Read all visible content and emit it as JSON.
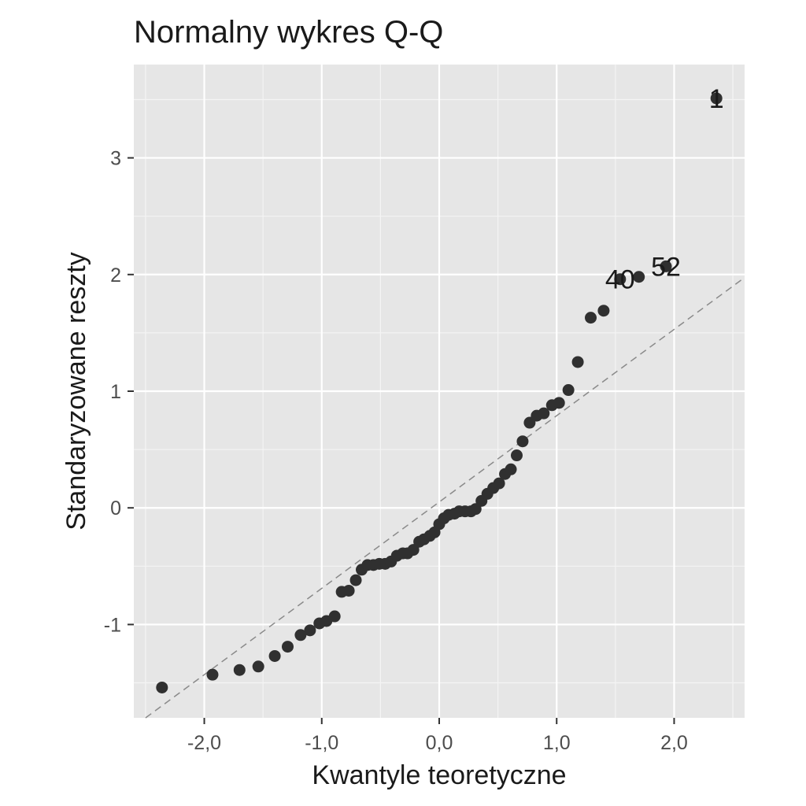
{
  "chart_data": {
    "type": "scatter",
    "title": "Normalny wykres Q-Q",
    "xlabel": "Kwantyle teoretyczne",
    "ylabel": "Standaryzowane reszty",
    "xlim": [
      -2.6,
      2.6
    ],
    "ylim": [
      -1.8,
      3.8
    ],
    "x_ticks": [
      -2,
      -1,
      0,
      1,
      2
    ],
    "x_tick_labels": [
      "-2,0",
      "-1,0",
      "0,0",
      "1,0",
      "2,0"
    ],
    "y_ticks": [
      -1,
      0,
      1,
      2,
      3
    ],
    "y_tick_labels": [
      "-1",
      "0",
      "1",
      "2",
      "3"
    ],
    "grid": true,
    "reference_line": {
      "type": "dashed",
      "intercept": 0.05,
      "slope": 0.74
    },
    "points": [
      {
        "x": -2.36,
        "y": -1.54
      },
      {
        "x": -1.93,
        "y": -1.43
      },
      {
        "x": -1.7,
        "y": -1.39
      },
      {
        "x": -1.54,
        "y": -1.36
      },
      {
        "x": -1.4,
        "y": -1.27
      },
      {
        "x": -1.29,
        "y": -1.19
      },
      {
        "x": -1.18,
        "y": -1.09
      },
      {
        "x": -1.1,
        "y": -1.05
      },
      {
        "x": -1.02,
        "y": -0.99
      },
      {
        "x": -0.96,
        "y": -0.97
      },
      {
        "x": -0.89,
        "y": -0.93
      },
      {
        "x": -0.83,
        "y": -0.72
      },
      {
        "x": -0.77,
        "y": -0.71
      },
      {
        "x": -0.71,
        "y": -0.62
      },
      {
        "x": -0.66,
        "y": -0.53
      },
      {
        "x": -0.61,
        "y": -0.49
      },
      {
        "x": -0.56,
        "y": -0.49
      },
      {
        "x": -0.51,
        "y": -0.48
      },
      {
        "x": -0.46,
        "y": -0.48
      },
      {
        "x": -0.41,
        "y": -0.46
      },
      {
        "x": -0.36,
        "y": -0.41
      },
      {
        "x": -0.31,
        "y": -0.39
      },
      {
        "x": -0.27,
        "y": -0.39
      },
      {
        "x": -0.22,
        "y": -0.36
      },
      {
        "x": -0.17,
        "y": -0.29
      },
      {
        "x": -0.13,
        "y": -0.27
      },
      {
        "x": -0.08,
        "y": -0.24
      },
      {
        "x": -0.04,
        "y": -0.21
      },
      {
        "x": 0.0,
        "y": -0.14
      },
      {
        "x": 0.04,
        "y": -0.09
      },
      {
        "x": 0.08,
        "y": -0.06
      },
      {
        "x": 0.13,
        "y": -0.05
      },
      {
        "x": 0.17,
        "y": -0.03
      },
      {
        "x": 0.22,
        "y": -0.03
      },
      {
        "x": 0.27,
        "y": -0.03
      },
      {
        "x": 0.31,
        "y": -0.01
      },
      {
        "x": 0.36,
        "y": 0.06
      },
      {
        "x": 0.41,
        "y": 0.12
      },
      {
        "x": 0.46,
        "y": 0.17
      },
      {
        "x": 0.51,
        "y": 0.21
      },
      {
        "x": 0.56,
        "y": 0.29
      },
      {
        "x": 0.61,
        "y": 0.33
      },
      {
        "x": 0.66,
        "y": 0.45
      },
      {
        "x": 0.71,
        "y": 0.57
      },
      {
        "x": 0.77,
        "y": 0.73
      },
      {
        "x": 0.83,
        "y": 0.79
      },
      {
        "x": 0.89,
        "y": 0.81
      },
      {
        "x": 0.96,
        "y": 0.88
      },
      {
        "x": 1.02,
        "y": 0.9
      },
      {
        "x": 1.1,
        "y": 1.01
      },
      {
        "x": 1.18,
        "y": 1.25
      },
      {
        "x": 1.29,
        "y": 1.63
      },
      {
        "x": 1.4,
        "y": 1.69
      },
      {
        "x": 1.54,
        "y": 1.96,
        "label": "40"
      },
      {
        "x": 1.7,
        "y": 1.98
      },
      {
        "x": 1.93,
        "y": 2.07,
        "label": "52"
      },
      {
        "x": 2.36,
        "y": 3.51,
        "label": "1"
      }
    ]
  }
}
